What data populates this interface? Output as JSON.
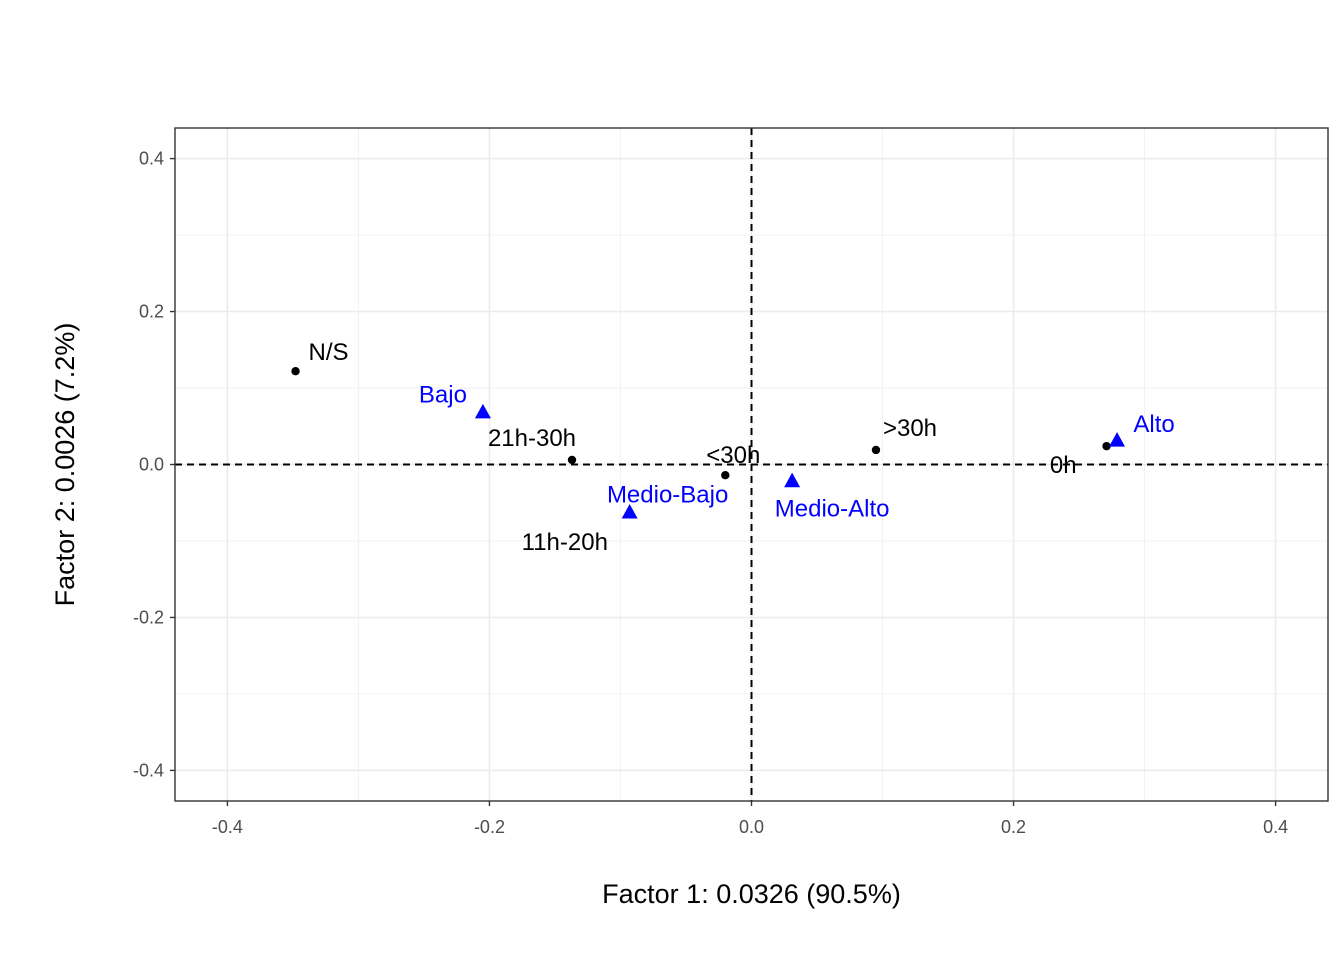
{
  "chart_data": {
    "type": "scatter",
    "title": "",
    "xlabel": "Factor 1: 0.0326 (90.5%)",
    "ylabel": "Factor 2: 0.0026 (7.2%)",
    "xlim": [
      -0.44,
      0.44
    ],
    "ylim": [
      -0.44,
      0.44
    ],
    "x_ticks": [
      -0.4,
      -0.2,
      0.0,
      0.2,
      0.4
    ],
    "x_tick_labels": [
      "-0.4",
      "-0.2",
      "0.0",
      "0.2",
      "0.4"
    ],
    "y_ticks": [
      -0.4,
      -0.2,
      0.0,
      0.2,
      0.4
    ],
    "y_tick_labels": [
      "-0.4",
      "-0.2",
      "0.0",
      "0.2",
      "0.4"
    ],
    "grid": true,
    "reference_lines": {
      "x": 0,
      "y": 0,
      "style": "dashed"
    },
    "series": [
      {
        "marker": "circle",
        "color": "#000000",
        "points": [
          {
            "label": "N/S",
            "x": -0.348,
            "y": 0.122
          },
          {
            "label": "21h-30h",
            "x": -0.137,
            "y": 0.006
          },
          {
            "label": "<30h",
            "x": -0.02,
            "y": -0.014
          },
          {
            "label": "11h-20h",
            "x": -0.093,
            "y": -0.065
          },
          {
            "label": ">30h",
            "x": 0.095,
            "y": 0.019
          },
          {
            "label": "0h",
            "x": 0.271,
            "y": 0.024
          }
        ]
      },
      {
        "marker": "triangle",
        "color": "#0000ff",
        "points": [
          {
            "label": "Bajo",
            "x": -0.205,
            "y": 0.068
          },
          {
            "label": "Medio-Bajo",
            "x": -0.093,
            "y": -0.063
          },
          {
            "label": "Medio-Alto",
            "x": 0.031,
            "y": -0.022
          },
          {
            "label": "Alto",
            "x": 0.279,
            "y": 0.031
          }
        ]
      }
    ]
  }
}
